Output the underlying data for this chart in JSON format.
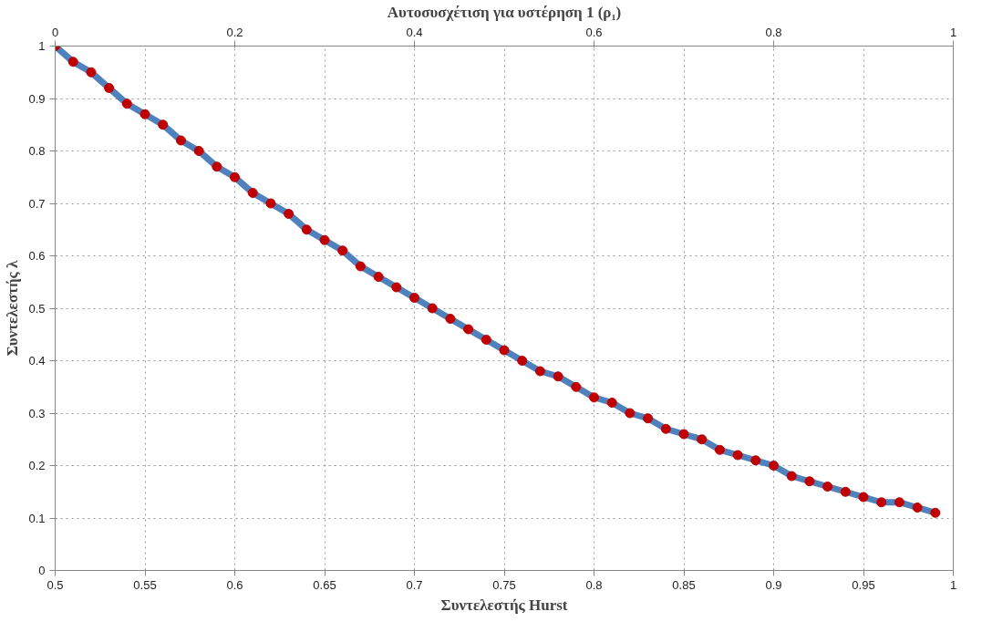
{
  "chart_data": {
    "type": "line",
    "x2label": "Αυτοσυσχέτιση για υστέρηση 1 (ρ₁)",
    "xlabel": "Συντελεστής Hurst",
    "ylabel": "Συντελεστής λ",
    "x": [
      0.5,
      0.51,
      0.52,
      0.53,
      0.54,
      0.55,
      0.56,
      0.57,
      0.58,
      0.59,
      0.6,
      0.61,
      0.62,
      0.63,
      0.64,
      0.65,
      0.66,
      0.67,
      0.68,
      0.69,
      0.7,
      0.71,
      0.72,
      0.73,
      0.74,
      0.75,
      0.76,
      0.77,
      0.78,
      0.79,
      0.8,
      0.81,
      0.82,
      0.83,
      0.84,
      0.85,
      0.86,
      0.87,
      0.88,
      0.89,
      0.9,
      0.91,
      0.92,
      0.93,
      0.94,
      0.95,
      0.96,
      0.97,
      0.98,
      0.99
    ],
    "series": [
      {
        "color": "#4f81bd",
        "colors": [
          "#c00000",
          "#c00000",
          "#c00000",
          "#c00000",
          "#c00000",
          "#c00000",
          "#c00000",
          "#c00000",
          "#c00000",
          "#c00000",
          "#c00000",
          "#c00000",
          "#c00000",
          "#c00000",
          "#c00000",
          "#c00000",
          "#c00000",
          "#c00000",
          "#c00000",
          "#c00000",
          "#c00000",
          "#c00000",
          "#c00000",
          "#c00000",
          "#c00000",
          "#c00000",
          "#c00000",
          "#c00000",
          "#c00000",
          "#c00000",
          "#c00000",
          "#c00000",
          "#c00000",
          "#c00000",
          "#c00000",
          "#c00000",
          "#c00000",
          "#c00000",
          "#c00000",
          "#c00000",
          "#c00000",
          "#c00000",
          "#c00000",
          "#c00000",
          "#c00000",
          "#c00000",
          "#c00000",
          "#c00000",
          "#c00000",
          "#c00000"
        ],
        "values": [
          1.0,
          0.97,
          0.95,
          0.92,
          0.89,
          0.87,
          0.85,
          0.82,
          0.8,
          0.77,
          0.75,
          0.72,
          0.7,
          0.68,
          0.65,
          0.63,
          0.61,
          0.58,
          0.56,
          0.54,
          0.52,
          0.5,
          0.48,
          0.46,
          0.44,
          0.42,
          0.4,
          0.38,
          0.37,
          0.35,
          0.33,
          0.32,
          0.3,
          0.29,
          0.27,
          0.26,
          0.25,
          0.23,
          0.22,
          0.21,
          0.2,
          0.18,
          0.17,
          0.16,
          0.15,
          0.14,
          0.13,
          0.13,
          0.12,
          0.11
        ]
      }
    ],
    "xlim": [
      0.5,
      1
    ],
    "xticks": [
      0.5,
      0.55,
      0.6,
      0.65,
      0.7,
      0.75,
      0.8,
      0.85,
      0.9,
      0.95,
      1
    ],
    "x2lim": [
      0,
      1
    ],
    "x2ticks": [
      0,
      0.2,
      0.4,
      0.6,
      0.8,
      1
    ],
    "ylim": [
      0,
      1
    ],
    "yticks": [
      0,
      0.1,
      0.2,
      0.3,
      0.4,
      0.5,
      0.6,
      0.7,
      0.8,
      0.9,
      1
    ],
    "grid": true,
    "marker": "circle",
    "line_style": "solid"
  }
}
